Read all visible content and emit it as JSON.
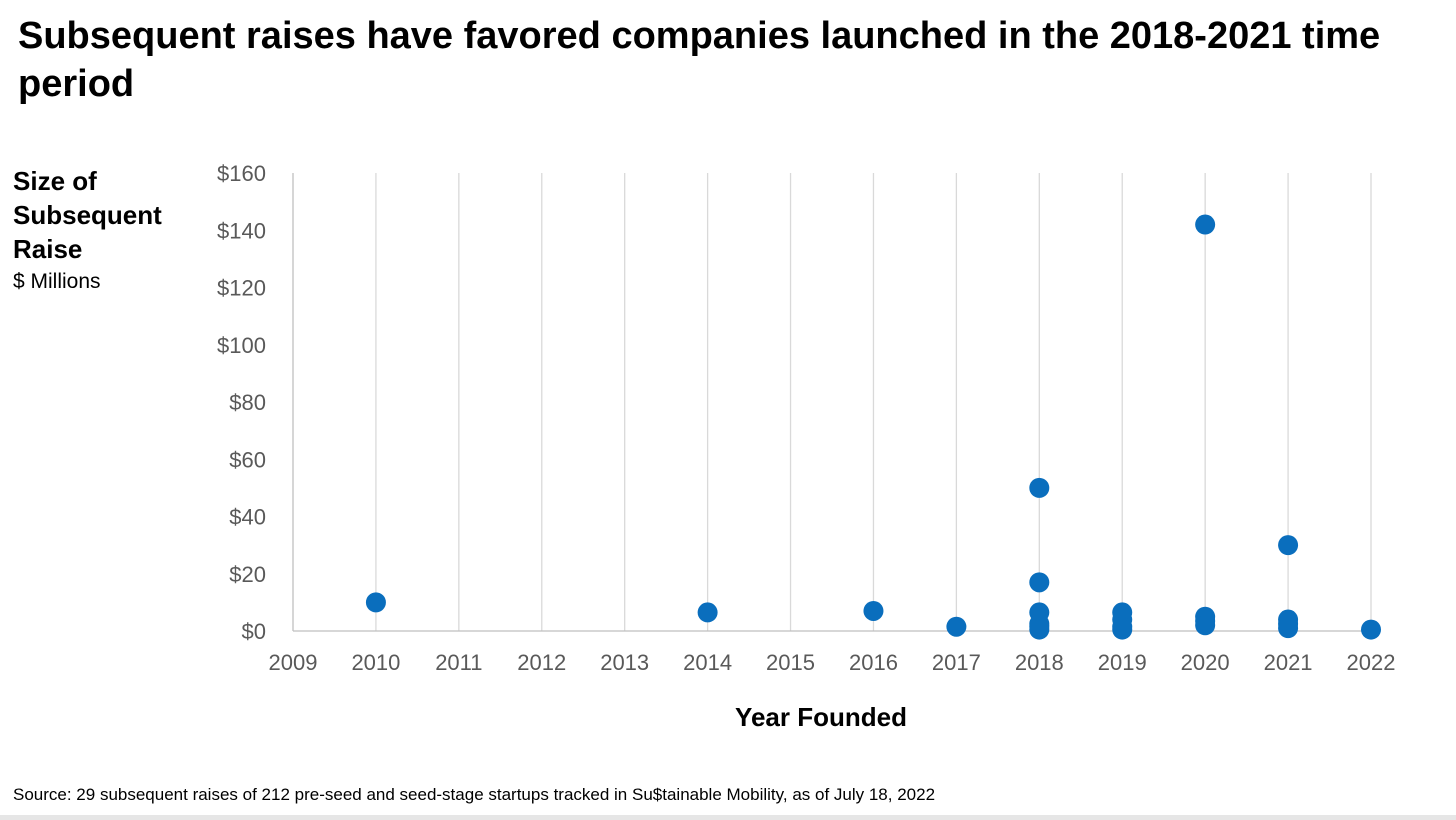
{
  "title": "Subsequent raises have favored companies launched in the 2018-2021 time period",
  "source": "Source: 29 subsequent raises of 212 pre-seed and seed-stage startups tracked in Su$tainable Mobility, as of July 18, 2022",
  "colors": {
    "marker": "#0a6ebd",
    "gridline": "#d9d9d9",
    "axis": "#bfbfbf",
    "tick_text": "#595959"
  },
  "chart_data": {
    "type": "scatter",
    "title": "Subsequent raises have favored companies launched in the 2018-2021 time period",
    "ylabel": "Size of Subsequent Raise",
    "ylabel_unit": "$ Millions",
    "xlabel": "Year Founded",
    "xlim": [
      2009,
      2022
    ],
    "ylim": [
      0,
      160
    ],
    "x_ticks": [
      "2009",
      "2010",
      "2011",
      "2012",
      "2013",
      "2014",
      "2015",
      "2016",
      "2017",
      "2018",
      "2019",
      "2020",
      "2021",
      "2022"
    ],
    "y_ticks": [
      "$0",
      "$20",
      "$40",
      "$60",
      "$80",
      "$100",
      "$120",
      "$140",
      "$160"
    ],
    "y_tick_values": [
      0,
      20,
      40,
      60,
      80,
      100,
      120,
      140,
      160
    ],
    "grid": "vertical",
    "legend": "none",
    "series": [
      {
        "points": [
          {
            "x": 2010,
            "y": 10
          },
          {
            "x": 2014,
            "y": 6.5
          },
          {
            "x": 2016,
            "y": 7
          },
          {
            "x": 2017,
            "y": 1.5
          },
          {
            "x": 2018,
            "y": 50
          },
          {
            "x": 2018,
            "y": 17
          },
          {
            "x": 2018,
            "y": 6.5
          },
          {
            "x": 2018,
            "y": 2.5
          },
          {
            "x": 2018,
            "y": 1.5
          },
          {
            "x": 2018,
            "y": 0.5
          },
          {
            "x": 2019,
            "y": 6.5
          },
          {
            "x": 2019,
            "y": 4
          },
          {
            "x": 2019,
            "y": 1.5
          },
          {
            "x": 2019,
            "y": 0.5
          },
          {
            "x": 2020,
            "y": 142
          },
          {
            "x": 2020,
            "y": 5
          },
          {
            "x": 2020,
            "y": 3.5
          },
          {
            "x": 2020,
            "y": 2
          },
          {
            "x": 2021,
            "y": 30
          },
          {
            "x": 2021,
            "y": 4
          },
          {
            "x": 2021,
            "y": 2.5
          },
          {
            "x": 2021,
            "y": 1
          },
          {
            "x": 2022,
            "y": 0.5
          }
        ]
      }
    ]
  }
}
